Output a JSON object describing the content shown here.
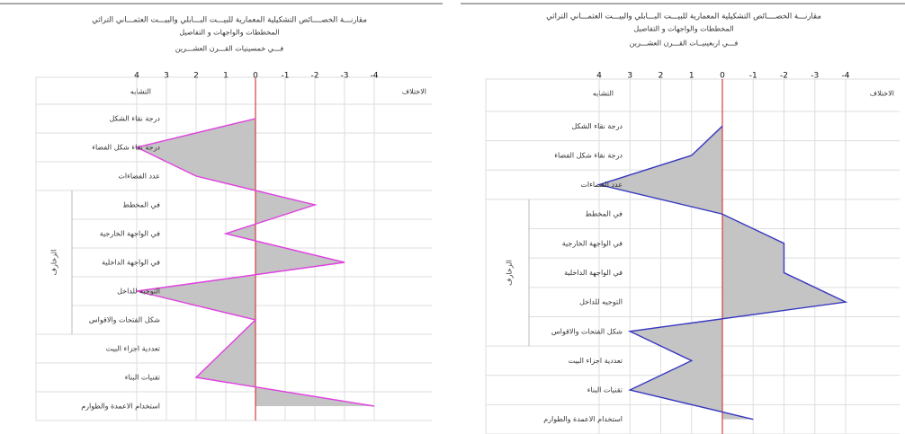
{
  "chart_data": [
    {
      "type": "area",
      "title_lines": [
        "مقارنـــة الخصــــائص التشكيلية المعمارية للبيـــت البـــابلي والبيـــت العثمـــاني التراثي",
        "المخططات والواجهات و التفاصيل",
        "فـــي خمسينيات القـــرن العشـــرين"
      ],
      "similarity_label": "التشابه",
      "difference_label": "الاختلاف",
      "group_label": "الزخارف",
      "categories": [
        "درجة نقاء الشكل",
        "درجة نقاء شكل الفضاء",
        "عدد الفضاءات",
        "في المخطط",
        "في الواجهة الخارجية",
        "في الواجهة الداخلية",
        "التوجيه للداخل",
        "شكل الفتحات والاقواس",
        "تعددية اجزاء البيت",
        "تقنيات البناء",
        "استخدام الاعمدة والطوارم"
      ],
      "values": [
        0,
        4,
        2,
        -2,
        1,
        -3,
        4,
        0,
        1,
        2,
        -4
      ],
      "color": "#e040e0",
      "fill": "#c4c4c4",
      "zero_color": "#d04040",
      "xlim": [
        4,
        -4
      ],
      "xticks": [
        4,
        3,
        2,
        1,
        0,
        -1,
        -2,
        -3,
        -4
      ],
      "grid": true
    },
    {
      "type": "area",
      "title_lines": [
        "مقارنـــة الخصــــائص التشكيلية المعمارية للبيـــت البـــابلي والبيـــت العثمـــاني التراثي",
        "المخططات والواجهات و التفاصيل",
        "فـــي اربعينيــات القـــرن العشـــرين"
      ],
      "similarity_label": "التشابه",
      "difference_label": "الاختلاف",
      "group_label": "الزخارف",
      "categories": [
        "درجة نقاء الشكل",
        "درجة نقاء شكل الفضاء",
        "عدد الفضاءات",
        "في المخطط",
        "في الواجهة الخارجية",
        "في الواجهة الداخلية",
        "التوجيه للداخل",
        "شكل الفتحات والاقواس",
        "تعددية اجزاء البيت",
        "تقنيات البناء",
        "استخدام الاعمدة والطوارم"
      ],
      "values": [
        0,
        1,
        4,
        0,
        -2,
        -2,
        -4,
        3,
        1,
        3,
        -1
      ],
      "color": "#3838c0",
      "fill": "#c4c4c4",
      "zero_color": "#d04040",
      "xlim": [
        4,
        -4
      ],
      "xticks": [
        4,
        3,
        2,
        1,
        0,
        -1,
        -2,
        -3,
        -4
      ],
      "grid": true
    }
  ]
}
